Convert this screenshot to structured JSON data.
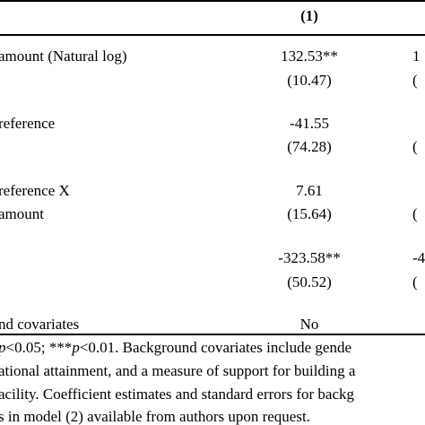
{
  "table": {
    "col1_header": "(1)",
    "rows": [
      {
        "id": "amount",
        "label": "amount (Natural log)",
        "label2": "",
        "col1_coef": "132.53**",
        "col1_se": "(10.47)",
        "col2_coef": "1",
        "col2_se": "("
      },
      {
        "id": "preference",
        "label": "reference",
        "label2": "",
        "col1_coef": "-41.55",
        "col1_se": "(74.28)",
        "col2_coef": "",
        "col2_se": "("
      },
      {
        "id": "interaction",
        "label": "reference X",
        "label2": "amount",
        "col1_coef": "7.61",
        "col1_se": "(15.64)",
        "col2_coef": "",
        "col2_se": "("
      },
      {
        "id": "constant",
        "label": "",
        "label2": "",
        "col1_coef": "-323.58**",
        "col1_se": "(50.52)",
        "col2_coef": "-4",
        "col2_se": "("
      }
    ],
    "covariates_row": {
      "label": "nd covariates",
      "col1": "No"
    }
  },
  "note": {
    "line1_prefix": "",
    "line1_p1": "p",
    "line1_mid": "<0.05; ***",
    "line1_p2": "p",
    "line1_rest": "<0.01. Background covariates include gende",
    "line2": "ational attainment, and a measure of support for building a",
    "line3": "acility. Coefficient estimates and standard errors for backg",
    "line4": "s in model (2) available from authors upon request."
  }
}
